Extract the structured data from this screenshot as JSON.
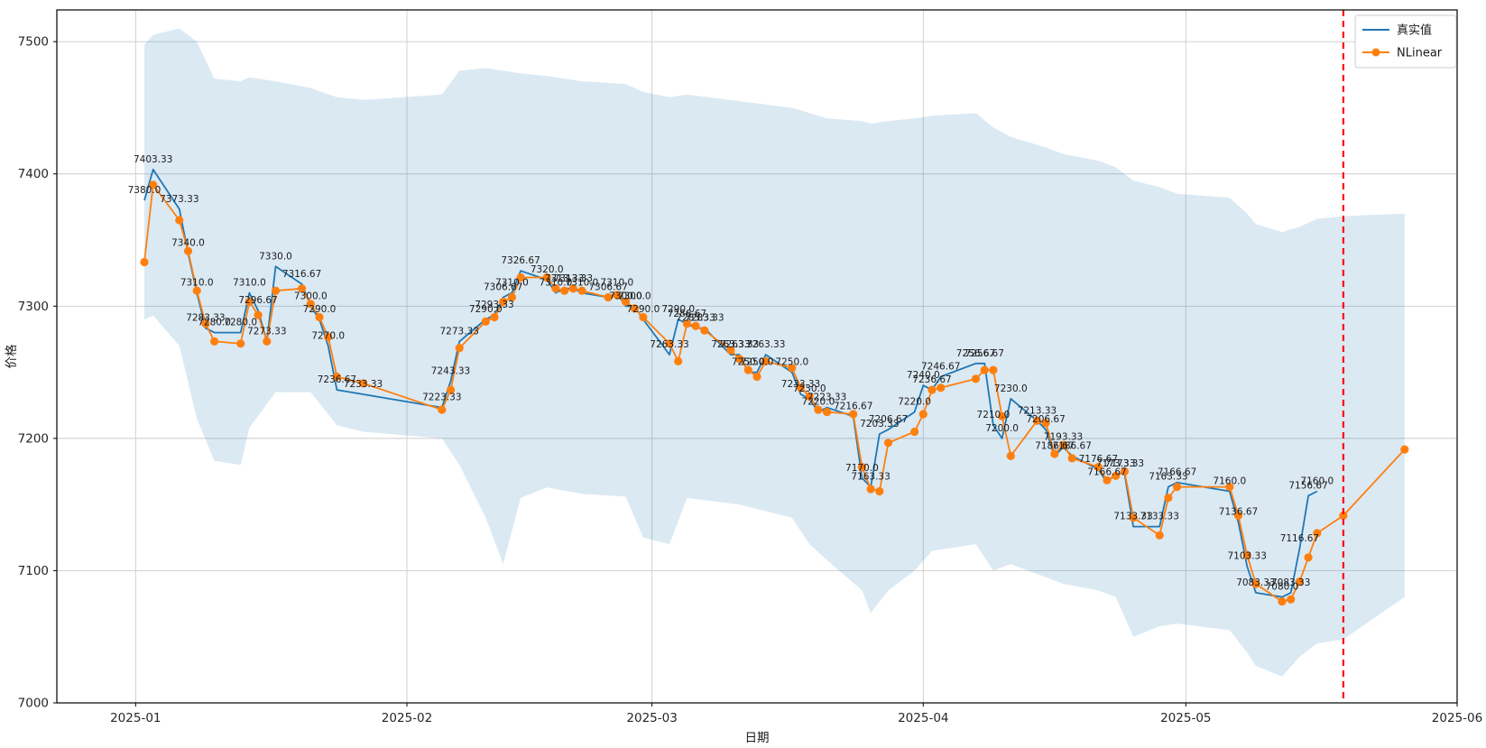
{
  "chart_data": {
    "type": "line",
    "title": "",
    "xlabel": "日期",
    "ylabel": "价格",
    "x_tick_labels": [
      "2025-01",
      "2025-02",
      "2025-03",
      "2025-04",
      "2025-05",
      "2025-06"
    ],
    "x_tick_dates": [
      "2025-01-01",
      "2025-02-01",
      "2025-03-01",
      "2025-04-01",
      "2025-05-01",
      "2025-06-01"
    ],
    "y_ticks": [
      7000,
      7100,
      7200,
      7300,
      7400,
      7500
    ],
    "ylim": [
      7000,
      7524
    ],
    "xlim": [
      "2024-12-23",
      "2025-06-01"
    ],
    "grid": true,
    "grid_color": "#cccccc",
    "background_color": "#ffffff",
    "legend_position": "upper right",
    "forecast_divider": {
      "date": "2025-05-19",
      "color": "#ff0000",
      "style": "dashed"
    },
    "series": [
      {
        "name": "真实值",
        "color": "#1f77b4",
        "marker": "none",
        "point_labels": true,
        "dates": [
          "2025-01-02",
          "2025-01-03",
          "2025-01-06",
          "2025-01-07",
          "2025-01-08",
          "2025-01-09",
          "2025-01-10",
          "2025-01-13",
          "2025-01-14",
          "2025-01-15",
          "2025-01-16",
          "2025-01-17",
          "2025-01-20",
          "2025-01-21",
          "2025-01-22",
          "2025-01-23",
          "2025-01-24",
          "2025-01-27",
          "2025-02-05",
          "2025-02-06",
          "2025-02-07",
          "2025-02-10",
          "2025-02-11",
          "2025-02-12",
          "2025-02-13",
          "2025-02-14",
          "2025-02-17",
          "2025-02-18",
          "2025-02-19",
          "2025-02-20",
          "2025-02-21",
          "2025-02-24",
          "2025-02-25",
          "2025-02-26",
          "2025-02-27",
          "2025-02-28",
          "2025-03-03",
          "2025-03-04",
          "2025-03-05",
          "2025-03-06",
          "2025-03-07",
          "2025-03-10",
          "2025-03-11",
          "2025-03-12",
          "2025-03-13",
          "2025-03-14",
          "2025-03-17",
          "2025-03-18",
          "2025-03-19",
          "2025-03-20",
          "2025-03-21",
          "2025-03-24",
          "2025-03-25",
          "2025-03-26",
          "2025-03-27",
          "2025-03-28",
          "2025-03-31",
          "2025-04-01",
          "2025-04-02",
          "2025-04-03",
          "2025-04-07",
          "2025-04-08",
          "2025-04-09",
          "2025-04-10",
          "2025-04-11",
          "2025-04-14",
          "2025-04-15",
          "2025-04-16",
          "2025-04-17",
          "2025-04-18",
          "2025-04-21",
          "2025-04-22",
          "2025-04-23",
          "2025-04-24",
          "2025-04-25",
          "2025-04-28",
          "2025-04-29",
          "2025-04-30",
          "2025-05-06",
          "2025-05-07",
          "2025-05-08",
          "2025-05-09",
          "2025-05-12",
          "2025-05-13",
          "2025-05-14",
          "2025-05-15",
          "2025-05-16"
        ],
        "values": [
          7380.0,
          7403.33,
          7373.33,
          7340.0,
          7310.0,
          7283.33,
          7280.0,
          7280.0,
          7310.0,
          7296.67,
          7273.33,
          7330.0,
          7316.67,
          7300.0,
          7290.0,
          7270.0,
          7236.67,
          7233.33,
          7223.33,
          7243.33,
          7273.33,
          7290.0,
          7293.33,
          7306.67,
          7310.0,
          7326.67,
          7320.0,
          7310.0,
          7313.33,
          7313.33,
          7310.0,
          7306.67,
          7310.0,
          7300.0,
          7300.0,
          7290.0,
          7263.33,
          7290.0,
          7286.67,
          7283.33,
          7283.33,
          7263.33,
          7263.33,
          7250.0,
          7250.0,
          7263.33,
          7250.0,
          7233.33,
          7230.0,
          7220.0,
          7223.33,
          7216.67,
          7170.0,
          7163.33,
          7203.33,
          7206.67,
          7220.0,
          7240.0,
          7236.67,
          7246.67,
          7256.67,
          7256.67,
          7210.0,
          7200.0,
          7230.0,
          7213.33,
          7206.67,
          7186.67,
          7193.33,
          7186.67,
          7176.67,
          7166.67,
          7173.33,
          7173.33,
          7133.33,
          7133.33,
          7163.33,
          7166.67,
          7160.0,
          7136.67,
          7103.33,
          7083.33,
          7080.0,
          7083.33,
          7116.67,
          7156.67,
          7160.0
        ]
      },
      {
        "name": "NLinear",
        "color": "#ff7f0e",
        "marker": "circle",
        "point_labels": false,
        "dates": [
          "2025-01-02",
          "2025-01-03",
          "2025-01-06",
          "2025-01-07",
          "2025-01-08",
          "2025-01-09",
          "2025-01-10",
          "2025-01-13",
          "2025-01-14",
          "2025-01-15",
          "2025-01-16",
          "2025-01-17",
          "2025-01-20",
          "2025-01-21",
          "2025-01-22",
          "2025-01-23",
          "2025-01-24",
          "2025-01-27",
          "2025-02-05",
          "2025-02-06",
          "2025-02-07",
          "2025-02-10",
          "2025-02-11",
          "2025-02-12",
          "2025-02-13",
          "2025-02-14",
          "2025-02-17",
          "2025-02-18",
          "2025-02-19",
          "2025-02-20",
          "2025-02-21",
          "2025-02-24",
          "2025-02-25",
          "2025-02-26",
          "2025-02-27",
          "2025-02-28",
          "2025-03-03",
          "2025-03-04",
          "2025-03-05",
          "2025-03-06",
          "2025-03-07",
          "2025-03-10",
          "2025-03-11",
          "2025-03-12",
          "2025-03-13",
          "2025-03-14",
          "2025-03-17",
          "2025-03-18",
          "2025-03-19",
          "2025-03-20",
          "2025-03-21",
          "2025-03-24",
          "2025-03-25",
          "2025-03-26",
          "2025-03-27",
          "2025-03-28",
          "2025-03-31",
          "2025-04-01",
          "2025-04-02",
          "2025-04-03",
          "2025-04-07",
          "2025-04-08",
          "2025-04-09",
          "2025-04-10",
          "2025-04-11",
          "2025-04-14",
          "2025-04-15",
          "2025-04-16",
          "2025-04-17",
          "2025-04-18",
          "2025-04-21",
          "2025-04-22",
          "2025-04-23",
          "2025-04-24",
          "2025-04-25",
          "2025-04-28",
          "2025-04-29",
          "2025-04-30",
          "2025-05-06",
          "2025-05-07",
          "2025-05-08",
          "2025-05-09",
          "2025-05-12",
          "2025-05-13",
          "2025-05-14",
          "2025-05-15",
          "2025-05-16",
          "2025-05-19",
          "2025-05-26"
        ],
        "values": [
          7333.33,
          7391.67,
          7365.0,
          7341.67,
          7311.67,
          7286.67,
          7273.33,
          7271.67,
          7303.33,
          7293.33,
          7273.33,
          7311.67,
          7313.33,
          7301.67,
          7291.67,
          7276.67,
          7246.67,
          7241.67,
          7221.67,
          7236.67,
          7268.33,
          7288.33,
          7291.67,
          7303.33,
          7306.67,
          7321.67,
          7321.67,
          7313.33,
          7311.67,
          7313.33,
          7311.67,
          7306.67,
          7308.33,
          7303.33,
          7298.33,
          7291.67,
          7271.67,
          7258.33,
          7286.67,
          7285.0,
          7281.67,
          7266.67,
          7260.0,
          7251.67,
          7246.67,
          7258.33,
          7253.33,
          7238.33,
          7231.67,
          7221.67,
          7220.0,
          7218.33,
          7178.33,
          7161.67,
          7160.0,
          7196.67,
          7205.0,
          7218.33,
          7236.67,
          7238.33,
          7245.0,
          7251.67,
          7251.67,
          7216.67,
          7186.67,
          7213.33,
          7211.67,
          7188.33,
          7195.0,
          7185.0,
          7178.33,
          7168.33,
          7171.67,
          7175.0,
          7140.0,
          7126.67,
          7155.0,
          7163.33,
          7163.33,
          7141.67,
          7111.67,
          7090.0,
          7076.67,
          7078.33,
          7091.67,
          7110.0,
          7128.33,
          7141.67,
          7191.67
        ]
      }
    ],
    "band": {
      "name": "confidence-band",
      "color": "#1f77b4",
      "opacity": 0.16,
      "dates": [
        "2025-01-02",
        "2025-01-03",
        "2025-01-06",
        "2025-01-08",
        "2025-01-10",
        "2025-01-13",
        "2025-01-14",
        "2025-01-17",
        "2025-01-21",
        "2025-01-24",
        "2025-01-27",
        "2025-02-05",
        "2025-02-07",
        "2025-02-10",
        "2025-02-12",
        "2025-02-14",
        "2025-02-17",
        "2025-02-21",
        "2025-02-26",
        "2025-02-28",
        "2025-03-03",
        "2025-03-05",
        "2025-03-11",
        "2025-03-17",
        "2025-03-19",
        "2025-03-21",
        "2025-03-25",
        "2025-03-26",
        "2025-03-28",
        "2025-03-31",
        "2025-04-02",
        "2025-04-07",
        "2025-04-09",
        "2025-04-11",
        "2025-04-15",
        "2025-04-17",
        "2025-04-21",
        "2025-04-23",
        "2025-04-25",
        "2025-04-28",
        "2025-04-30",
        "2025-05-06",
        "2025-05-08",
        "2025-05-09",
        "2025-05-12",
        "2025-05-14",
        "2025-05-16",
        "2025-05-19",
        "2025-05-26"
      ],
      "upper": [
        7498,
        7505,
        7510,
        7500,
        7472,
        7470,
        7473,
        7470,
        7465,
        7458,
        7456,
        7460,
        7478,
        7480,
        7478,
        7476,
        7474,
        7470,
        7468,
        7462,
        7458,
        7460,
        7455,
        7450,
        7446,
        7442,
        7440,
        7438,
        7440,
        7442,
        7444,
        7446,
        7435,
        7428,
        7420,
        7415,
        7410,
        7405,
        7395,
        7390,
        7385,
        7382,
        7370,
        7362,
        7356,
        7360,
        7366,
        7368,
        7370
      ],
      "lower": [
        7290,
        7293,
        7270,
        7215,
        7183,
        7180,
        7208,
        7235,
        7235,
        7210,
        7205,
        7200,
        7180,
        7140,
        7105,
        7155,
        7163,
        7158,
        7156,
        7125,
        7120,
        7155,
        7150,
        7140,
        7120,
        7108,
        7085,
        7068,
        7085,
        7100,
        7115,
        7120,
        7100,
        7105,
        7095,
        7090,
        7085,
        7080,
        7050,
        7058,
        7060,
        7055,
        7038,
        7028,
        7020,
        7035,
        7045,
        7048,
        7080
      ]
    }
  }
}
